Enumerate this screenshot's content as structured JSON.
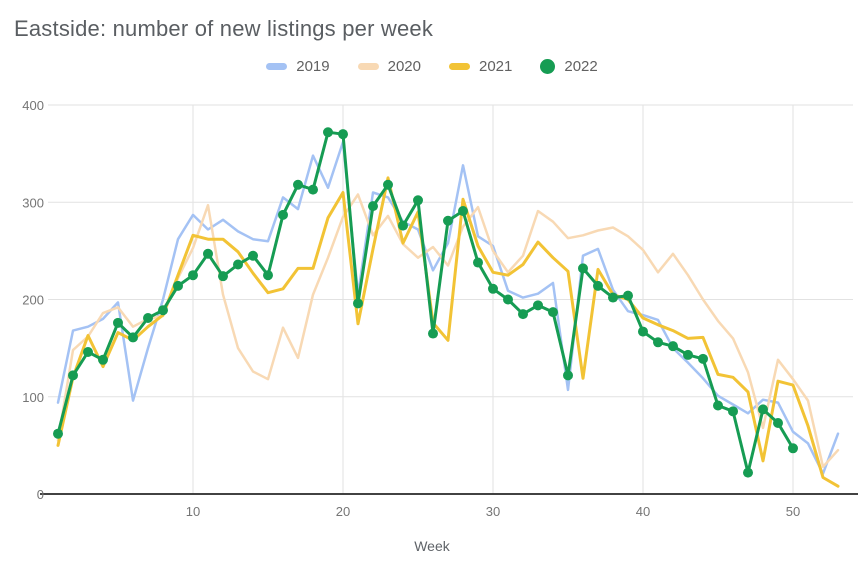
{
  "chart_data": {
    "type": "line",
    "title": "Eastside: number of new listings per week",
    "xlabel": "Week",
    "ylabel": "",
    "x_unit": "week",
    "xlim": [
      1,
      53
    ],
    "ylim": [
      0,
      400
    ],
    "x_ticks": [
      10,
      20,
      30,
      40,
      50
    ],
    "y_ticks": [
      0,
      100,
      200,
      300,
      400
    ],
    "grid": true,
    "legend_position": "top-center",
    "series": [
      {
        "name": "2019",
        "color": "#a4c2f4",
        "stroke_width": 2.5,
        "points": false,
        "values": [
          94,
          168,
          172,
          180,
          197,
          96,
          150,
          200,
          262,
          287,
          272,
          282,
          270,
          262,
          260,
          305,
          293,
          348,
          315,
          362,
          205,
          310,
          305,
          280,
          272,
          230,
          258,
          338,
          265,
          255,
          209,
          202,
          206,
          217,
          107,
          245,
          252,
          210,
          188,
          184,
          179,
          150,
          135,
          119,
          101,
          92,
          83,
          97,
          94,
          64,
          52,
          21,
          62
        ]
      },
      {
        "name": "2020",
        "color": "#f8d9b4",
        "stroke_width": 2.5,
        "points": false,
        "values": [
          55,
          148,
          162,
          186,
          192,
          172,
          180,
          183,
          222,
          253,
          297,
          205,
          150,
          126,
          118,
          171,
          140,
          205,
          243,
          285,
          308,
          266,
          286,
          257,
          243,
          254,
          235,
          275,
          295,
          250,
          228,
          245,
          291,
          280,
          263,
          266,
          271,
          274,
          265,
          251,
          228,
          247,
          225,
          200,
          178,
          160,
          125,
          68,
          138,
          118,
          96,
          28,
          45
        ]
      },
      {
        "name": "2021",
        "color": "#f2c335",
        "stroke_width": 3,
        "points": false,
        "values": [
          50,
          120,
          163,
          131,
          166,
          158,
          172,
          184,
          225,
          266,
          262,
          262,
          249,
          227,
          207,
          211,
          232,
          232,
          284,
          310,
          175,
          252,
          325,
          258,
          290,
          176,
          158,
          303,
          255,
          228,
          225,
          236,
          259,
          243,
          229,
          119,
          231,
          205,
          200,
          181,
          174,
          168,
          160,
          161,
          123,
          120,
          105,
          34,
          116,
          112,
          70,
          17,
          8
        ]
      },
      {
        "name": "2022",
        "color": "#169c53",
        "stroke_width": 3,
        "points": true,
        "dot_radius": 5,
        "values": [
          62,
          122,
          146,
          138,
          176,
          161,
          181,
          189,
          214,
          225,
          247,
          224,
          236,
          245,
          225,
          287,
          318,
          313,
          372,
          370,
          196,
          296,
          318,
          276,
          302,
          165,
          281,
          291,
          238,
          211,
          200,
          185,
          194,
          187,
          122,
          232,
          214,
          202,
          204,
          167,
          156,
          152,
          143,
          139,
          91,
          85,
          22,
          87,
          73,
          47,
          null,
          null,
          null
        ]
      }
    ],
    "style": {
      "background": "#ffffff",
      "gridline_color": "#e2e2e2",
      "axis_color": "#424242",
      "tick_text_color": "#757575",
      "title_color": "#5a5e62",
      "legend_text_color": "#616161"
    }
  }
}
